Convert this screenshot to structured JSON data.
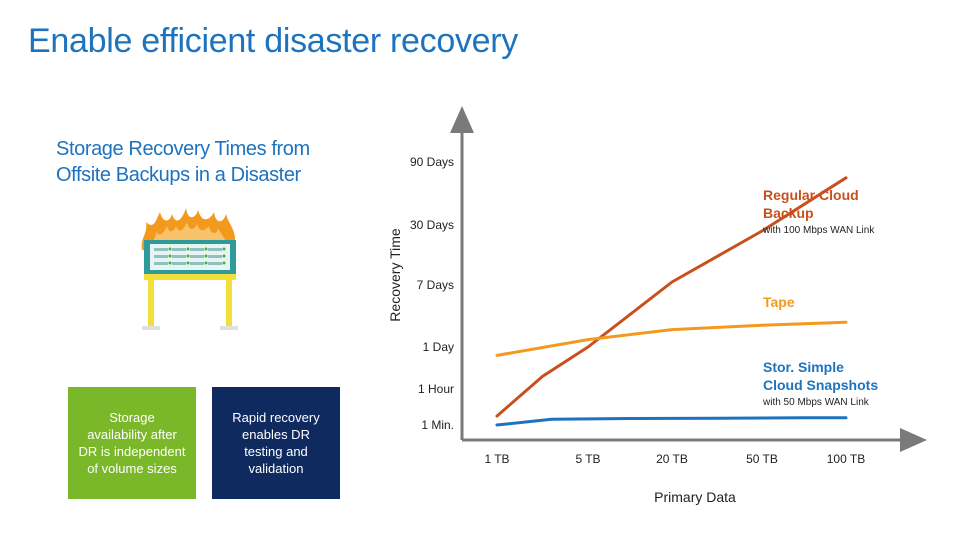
{
  "slide": {
    "title": "Enable efficient disaster recovery",
    "subtitle": "Storage Recovery Times from Offsite Backups in a Disaster",
    "boxes": [
      {
        "text": "Storage availability after DR is independent of volume sizes",
        "color": "#7ab829"
      },
      {
        "text": "Rapid recovery enables DR testing and validation",
        "color": "#0e2a5e"
      }
    ],
    "illustration_icon": "burning-server-rack-icon"
  },
  "chart_data": {
    "type": "line",
    "xlabel": "Primary Data",
    "ylabel": "Recovery Time",
    "x_categories": [
      "1 TB",
      "5 TB",
      "20 TB",
      "50 TB",
      "100 TB"
    ],
    "y_categories": [
      "1 Min.",
      "1 Hour",
      "1 Day",
      "7 Days",
      "30 Days",
      "90 Days"
    ],
    "series": [
      {
        "name": "Regular Cloud Backup",
        "subtitle": "with 100 Mbps WAN Link",
        "color": "#c9501c",
        "x": [
          0.0,
          0.5,
          1.0,
          2.0,
          3.0,
          4.0
        ],
        "y": [
          0.25,
          1.3,
          2.0,
          3.05,
          3.9,
          4.75
        ]
      },
      {
        "name": "Tape",
        "subtitle": "",
        "color": "#f39a1e",
        "x": [
          0.0,
          1.0,
          2.0,
          3.0,
          4.0
        ],
        "y": [
          1.8,
          2.12,
          2.28,
          2.35,
          2.4
        ]
      },
      {
        "name": "StorSimple Cloud Snapshots",
        "display_name": "Stor. Simple Cloud Snapshots",
        "subtitle": "with 50 Mbps WAN Link",
        "color": "#1e73be",
        "x": [
          0.0,
          0.6,
          1.5,
          2.5,
          3.5,
          4.0
        ],
        "y": [
          0.0,
          0.16,
          0.18,
          0.19,
          0.2,
          0.2
        ]
      }
    ],
    "grid": false,
    "legend": "inline-right"
  }
}
